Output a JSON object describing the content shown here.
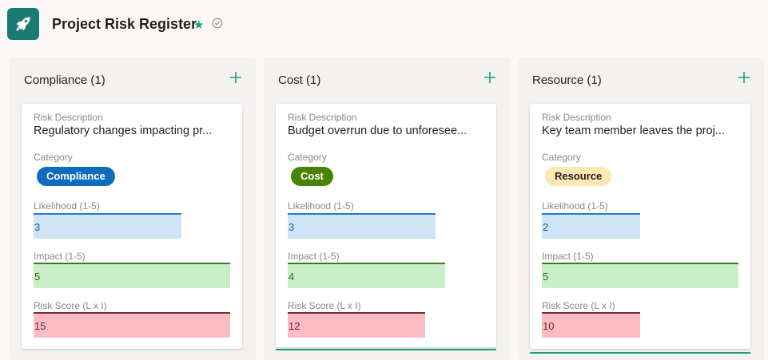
{
  "header": {
    "title": "Project Risk Register",
    "star_glyph": "★",
    "app_icon": "rocket-icon",
    "accent_color": "#1b7a73"
  },
  "columns": [
    {
      "title": "Compliance (1)",
      "card": {
        "desc_label": "Risk Description",
        "description": "Regulatory changes impacting pr...",
        "category_label": "Category",
        "category": "Compliance",
        "category_bg": "#0f6cbd",
        "category_fg": "#ffffff",
        "likelihood_label": "Likelihood (1-5)",
        "likelihood": "3",
        "impact_label": "Impact (1-5)",
        "impact": "5",
        "risk_label": "Risk Score (L x I)",
        "risk": "15"
      }
    },
    {
      "title": "Cost (1)",
      "card": {
        "desc_label": "Risk Description",
        "description": "Budget overrun due to unforesee...",
        "category_label": "Category",
        "category": "Cost",
        "category_bg": "#498205",
        "category_fg": "#ffffff",
        "likelihood_label": "Likelihood (1-5)",
        "likelihood": "3",
        "impact_label": "Impact (1-5)",
        "impact": "4",
        "risk_label": "Risk Score (L x I)",
        "risk": "12"
      }
    },
    {
      "title": "Resource (1)",
      "card": {
        "desc_label": "Risk Description",
        "description": "Key team member leaves the proj...",
        "category_label": "Category",
        "category": "Resource",
        "category_bg": "#fde7b4",
        "category_fg": "#201f1e",
        "likelihood_label": "Likelihood (1-5)",
        "likelihood": "2",
        "impact_label": "Impact (1-5)",
        "impact": "5",
        "risk_label": "Risk Score (L x I)",
        "risk": "10"
      }
    }
  ]
}
